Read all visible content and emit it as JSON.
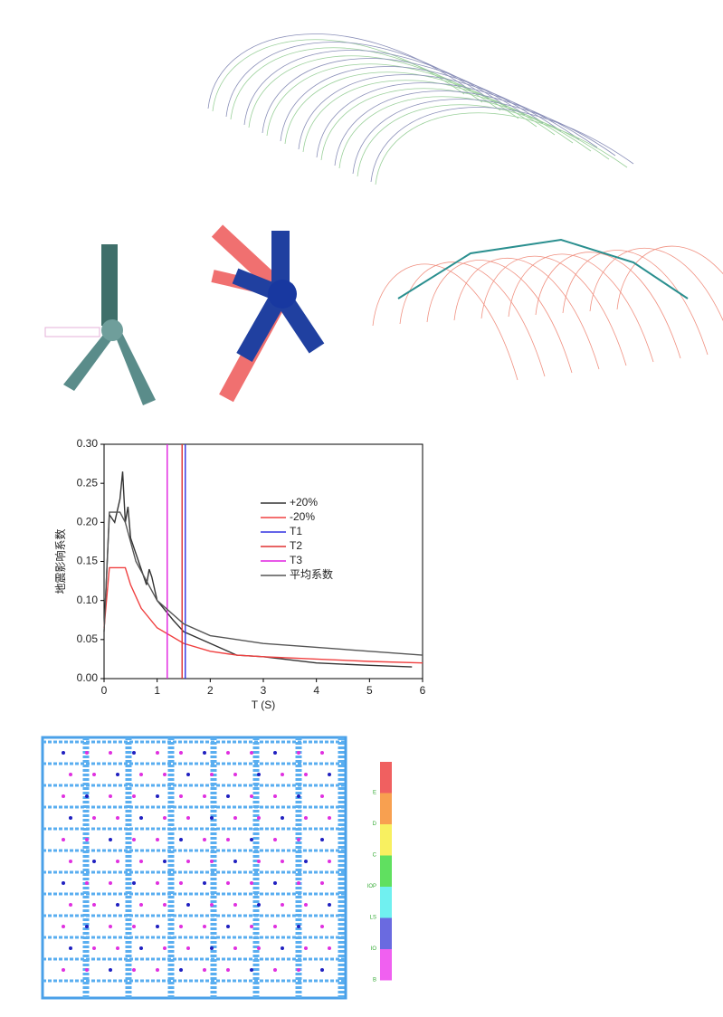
{
  "chart_data": {
    "type": "line",
    "xlabel": "T (S)",
    "ylabel": "地震影响系数",
    "xlim": [
      0,
      6
    ],
    "xticks": [
      0,
      1,
      2,
      3,
      4,
      5,
      6
    ],
    "ylim": [
      0,
      0.3
    ],
    "yticks": [
      {
        "value": 0,
        "label": "0.00"
      },
      {
        "value": 0.05,
        "label": "0.05"
      },
      {
        "value": 0.1,
        "label": "0.10"
      },
      {
        "value": 0.15,
        "label": "0.15"
      },
      {
        "value": 0.2,
        "label": "0.20"
      },
      {
        "value": 0.25,
        "label": "0.25"
      },
      {
        "value": 0.3,
        "label": "0.30"
      }
    ],
    "series": [
      {
        "name": "+20%",
        "color": "#333333",
        "x": [
          0,
          0.1,
          0.2,
          0.3,
          0.35,
          0.4,
          0.45,
          0.5,
          0.7,
          0.8,
          0.85,
          0.9,
          1.0,
          1.3,
          1.5,
          2,
          2.5,
          3,
          4,
          5,
          5.8
        ],
        "values": [
          0.06,
          0.21,
          0.2,
          0.23,
          0.265,
          0.2,
          0.22,
          0.18,
          0.14,
          0.12,
          0.14,
          0.13,
          0.1,
          0.075,
          0.06,
          0.045,
          0.03,
          0.028,
          0.02,
          0.017,
          0.015
        ]
      },
      {
        "name": "-20%",
        "color": "#f04040",
        "x": [
          0,
          0.1,
          0.4,
          0.5,
          0.7,
          1.0,
          1.5,
          2,
          2.5,
          3,
          4,
          5,
          6
        ],
        "values": [
          0.065,
          0.142,
          0.142,
          0.12,
          0.09,
          0.065,
          0.045,
          0.035,
          0.03,
          0.028,
          0.025,
          0.022,
          0.02
        ]
      },
      {
        "name": "T1",
        "color": "#3030e0",
        "position": 1.53
      },
      {
        "name": "T2",
        "color": "#e03030",
        "position": 1.47
      },
      {
        "name": "T3",
        "color": "#e020e0",
        "position": 1.19
      },
      {
        "name": "平均系数",
        "color": "#555555",
        "x": [
          0,
          0.1,
          0.3,
          0.4,
          0.6,
          1.0,
          1.5,
          2,
          3,
          4,
          5,
          6
        ],
        "values": [
          0.06,
          0.213,
          0.213,
          0.2,
          0.15,
          0.1,
          0.07,
          0.055,
          0.045,
          0.04,
          0.035,
          0.03
        ]
      }
    ]
  },
  "performance_legend": {
    "labels": [
      "E",
      "D",
      "C",
      "IOP",
      "LS",
      "IO",
      "B"
    ],
    "colors": [
      "#f06060",
      "#f8a050",
      "#f8f060",
      "#60e060",
      "#70f0f0",
      "#6a6ae0",
      "#f060f0"
    ]
  }
}
